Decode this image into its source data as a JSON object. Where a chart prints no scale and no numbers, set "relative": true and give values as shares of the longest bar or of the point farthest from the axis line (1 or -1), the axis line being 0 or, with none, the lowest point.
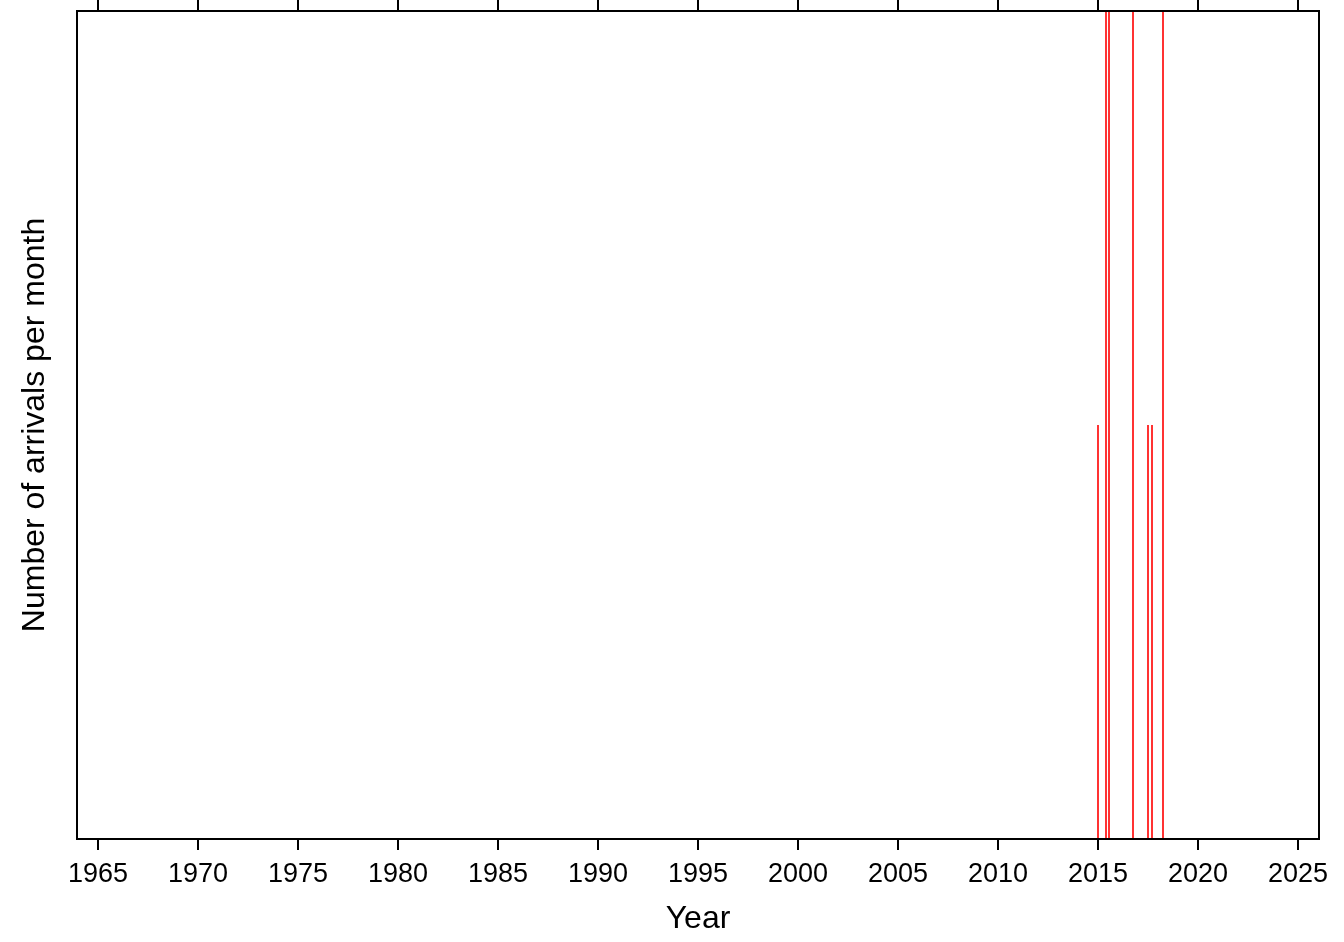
{
  "chart_data": {
    "type": "bar",
    "relative": true,
    "xlabel": "Year",
    "ylabel": "Number of arrivals per month",
    "x": [
      2015.0,
      2015.41,
      2015.54,
      2016.77,
      2017.52,
      2017.7,
      2018.27
    ],
    "values": [
      0.5,
      1,
      1,
      1,
      0.5,
      0.5,
      1
    ],
    "color": "#ff3333",
    "xlim": [
      1964,
      2026
    ],
    "xticks": [
      1965,
      1970,
      1975,
      1980,
      1985,
      1990,
      1995,
      2000,
      2005,
      2010,
      2015,
      2020,
      2025
    ],
    "grid": false
  }
}
